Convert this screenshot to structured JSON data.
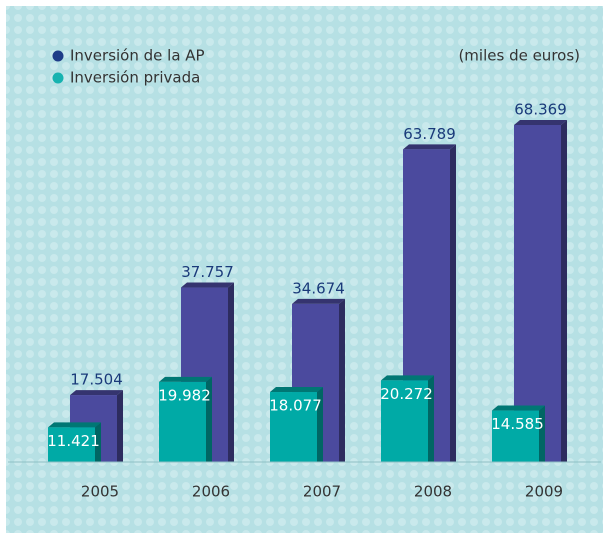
{
  "chart_data": {
    "type": "bar",
    "subtitle": "(miles de euros)",
    "categories": [
      "2005",
      "2006",
      "2007",
      "2008",
      "2009"
    ],
    "series": [
      {
        "name": "Inversión de la AP",
        "color": "#4b4a9e",
        "values": [
          17504,
          37757,
          34674,
          63789,
          68369
        ],
        "value_labels": [
          "17.504",
          "37.757",
          "34.674",
          "63.789",
          "68.369"
        ]
      },
      {
        "name": "Inversión privada",
        "color": "#00aaa6",
        "values": [
          11421,
          19982,
          18077,
          20272,
          14585
        ],
        "value_labels": [
          "11.421",
          "19.982",
          "18.077",
          "20.272",
          "14.585"
        ]
      }
    ],
    "legend": "top-left"
  }
}
